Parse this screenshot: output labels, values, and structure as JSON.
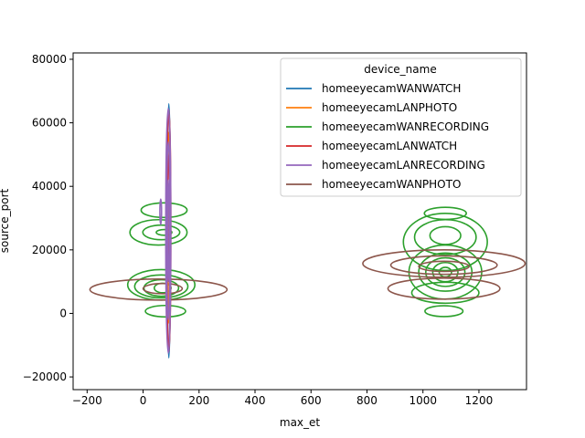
{
  "chart_data": {
    "type": "kde-contour",
    "xlabel": "max_et",
    "ylabel": "source_port",
    "xlim": [
      -250,
      1370
    ],
    "ylim": [
      -24000,
      82000
    ],
    "x_ticks": [
      -200,
      0,
      200,
      400,
      600,
      800,
      1000,
      1200
    ],
    "x_tick_labels": [
      "−200",
      "0",
      "200",
      "400",
      "600",
      "800",
      "1000",
      "1200"
    ],
    "y_ticks": [
      -20000,
      0,
      20000,
      40000,
      60000,
      80000
    ],
    "y_tick_labels": [
      "−20000",
      "0",
      "20000",
      "40000",
      "60000",
      "80000"
    ],
    "grid": false,
    "legend": {
      "title": "device_name",
      "placement": "upper-right",
      "entries": [
        {
          "name": "homeeyecamWANWATCH",
          "color": "#1f77b4"
        },
        {
          "name": "homeeyecamLANPHOTO",
          "color": "#ff7f0e"
        },
        {
          "name": "homeeyecamWANRECORDING",
          "color": "#2ca02c"
        },
        {
          "name": "homeeyecamLANWATCH",
          "color": "#d62728"
        },
        {
          "name": "homeeyecamLANRECORDING",
          "color": "#9467bd"
        },
        {
          "name": "homeeyecamWANPHOTO",
          "color": "#8c564b"
        }
      ]
    },
    "series": [
      {
        "name": "homeeyecamWANWATCH",
        "color": "#1f77b4",
        "contours": [
          {
            "cx": 92,
            "cy": 26000,
            "rx": 6,
            "ry": 40000
          }
        ]
      },
      {
        "name": "homeeyecamLANPHOTO",
        "color": "#ff7f0e",
        "contours": [
          {
            "cx": 92,
            "cy": 27000,
            "rx": 4,
            "ry": 30000
          }
        ]
      },
      {
        "name": "homeeyecamLANWATCH",
        "color": "#d62728",
        "contours": [
          {
            "cx": 92,
            "cy": 26000,
            "rx": 7,
            "ry": 38000
          },
          {
            "cx": 92,
            "cy": 30000,
            "rx": 4,
            "ry": 20000
          }
        ]
      },
      {
        "name": "homeeyecamLANRECORDING",
        "color": "#9467bd",
        "contours": [
          {
            "cx": 90,
            "cy": 26000,
            "rx": 9,
            "ry": 38500
          },
          {
            "cx": 90,
            "cy": 26000,
            "rx": 6,
            "ry": 28000
          },
          {
            "cx": 90,
            "cy": 26000,
            "rx": 3,
            "ry": 16000
          },
          {
            "cx": 63,
            "cy": 32000,
            "rx": 3,
            "ry": 4000
          }
        ]
      },
      {
        "name": "homeeyecamWANRECORDING",
        "color": "#2ca02c",
        "contours": [
          {
            "cx": 75,
            "cy": 32500,
            "rx": 82,
            "ry": 2300
          },
          {
            "cx": 55,
            "cy": 25500,
            "rx": 102,
            "ry": 4000
          },
          {
            "cx": 65,
            "cy": 25500,
            "rx": 66,
            "ry": 2300
          },
          {
            "cx": 75,
            "cy": 25500,
            "rx": 28,
            "ry": 900
          },
          {
            "cx": 65,
            "cy": 9000,
            "rx": 120,
            "ry": 4800
          },
          {
            "cx": 65,
            "cy": 8500,
            "rx": 95,
            "ry": 3600
          },
          {
            "cx": 65,
            "cy": 8000,
            "rx": 62,
            "ry": 2600
          },
          {
            "cx": 70,
            "cy": 8000,
            "rx": 30,
            "ry": 1500
          },
          {
            "cx": 80,
            "cy": 700,
            "rx": 72,
            "ry": 1800
          },
          {
            "cx": 1080,
            "cy": 22500,
            "rx": 150,
            "ry": 9000
          },
          {
            "cx": 1080,
            "cy": 24000,
            "rx": 110,
            "ry": 5500
          },
          {
            "cx": 1080,
            "cy": 24500,
            "rx": 55,
            "ry": 2800
          },
          {
            "cx": 1080,
            "cy": 31500,
            "rx": 75,
            "ry": 1900
          },
          {
            "cx": 1080,
            "cy": 13000,
            "rx": 130,
            "ry": 8500
          },
          {
            "cx": 1080,
            "cy": 13000,
            "rx": 95,
            "ry": 6000
          },
          {
            "cx": 1080,
            "cy": 13000,
            "rx": 70,
            "ry": 4500
          },
          {
            "cx": 1080,
            "cy": 13000,
            "rx": 45,
            "ry": 3000
          },
          {
            "cx": 1080,
            "cy": 13000,
            "rx": 22,
            "ry": 1500
          },
          {
            "cx": 1080,
            "cy": 6500,
            "rx": 120,
            "ry": 3300
          },
          {
            "cx": 1075,
            "cy": 700,
            "rx": 68,
            "ry": 1700
          }
        ]
      },
      {
        "name": "homeeyecamWANPHOTO",
        "color": "#8c564b",
        "contours": [
          {
            "cx": 55,
            "cy": 7500,
            "rx": 245,
            "ry": 3300
          },
          {
            "cx": 70,
            "cy": 7800,
            "rx": 70,
            "ry": 1600
          },
          {
            "cx": 1075,
            "cy": 15700,
            "rx": 290,
            "ry": 4300
          },
          {
            "cx": 1075,
            "cy": 15200,
            "rx": 190,
            "ry": 2900
          },
          {
            "cx": 1075,
            "cy": 14800,
            "rx": 90,
            "ry": 1600
          },
          {
            "cx": 1075,
            "cy": 7800,
            "rx": 200,
            "ry": 3300
          }
        ]
      }
    ]
  }
}
